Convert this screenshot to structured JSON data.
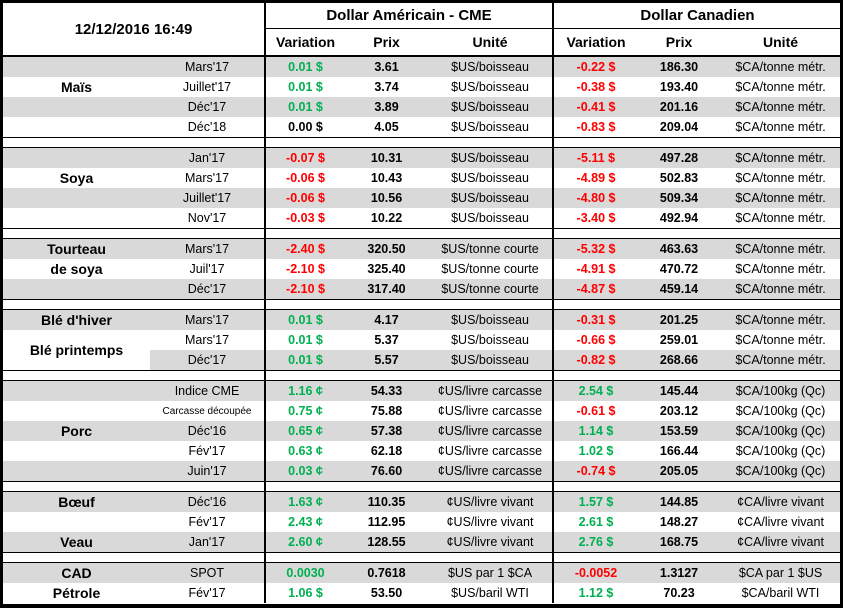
{
  "report": {
    "timestamp": "12/12/2016 16:49",
    "header": {
      "us_group": "Dollar Américain - CME",
      "ca_group": "Dollar Canadien",
      "columns": [
        "Variation",
        "Prix",
        "Unité"
      ]
    },
    "colors": {
      "positive": "#00B050",
      "negative": "#FF0000",
      "neutral": "#000000",
      "row_shade": "#D9D9D9",
      "border": "#000000"
    },
    "sections": [
      {
        "name": "Maïs",
        "rows": [
          {
            "label": "",
            "month": "Mars'17",
            "us": {
              "var": "0.01 $",
              "dir": "up",
              "price": "3.61",
              "unit": "$US/boisseau"
            },
            "ca": {
              "var": "-0.22 $",
              "dir": "down",
              "price": "186.30",
              "unit": "$CA/tonne métr."
            }
          },
          {
            "label": "Maïs",
            "month": "Juillet'17",
            "us": {
              "var": "0.01 $",
              "dir": "up",
              "price": "3.74",
              "unit": "$US/boisseau"
            },
            "ca": {
              "var": "-0.38 $",
              "dir": "down",
              "price": "193.40",
              "unit": "$CA/tonne métr."
            }
          },
          {
            "label": "",
            "month": "Déc'17",
            "us": {
              "var": "0.01 $",
              "dir": "up",
              "price": "3.89",
              "unit": "$US/boisseau"
            },
            "ca": {
              "var": "-0.41 $",
              "dir": "down",
              "price": "201.16",
              "unit": "$CA/tonne métr."
            }
          },
          {
            "label": "",
            "month": "Déc'18",
            "us": {
              "var": "0.00 $",
              "dir": "flat",
              "price": "4.05",
              "unit": "$US/boisseau"
            },
            "ca": {
              "var": "-0.83 $",
              "dir": "down",
              "price": "209.04",
              "unit": "$CA/tonne métr."
            }
          }
        ]
      },
      {
        "name": "Soya",
        "rows": [
          {
            "label": "",
            "month": "Jan'17",
            "us": {
              "var": "-0.07 $",
              "dir": "down",
              "price": "10.31",
              "unit": "$US/boisseau"
            },
            "ca": {
              "var": "-5.11 $",
              "dir": "down",
              "price": "497.28",
              "unit": "$CA/tonne métr."
            }
          },
          {
            "label": "Soya",
            "month": "Mars'17",
            "us": {
              "var": "-0.06 $",
              "dir": "down",
              "price": "10.43",
              "unit": "$US/boisseau"
            },
            "ca": {
              "var": "-4.89 $",
              "dir": "down",
              "price": "502.83",
              "unit": "$CA/tonne métr."
            }
          },
          {
            "label": "",
            "month": "Juillet'17",
            "us": {
              "var": "-0.06 $",
              "dir": "down",
              "price": "10.56",
              "unit": "$US/boisseau"
            },
            "ca": {
              "var": "-4.80 $",
              "dir": "down",
              "price": "509.34",
              "unit": "$CA/tonne métr."
            }
          },
          {
            "label": "",
            "month": "Nov'17",
            "us": {
              "var": "-0.03 $",
              "dir": "down",
              "price": "10.22",
              "unit": "$US/boisseau"
            },
            "ca": {
              "var": "-3.40 $",
              "dir": "down",
              "price": "492.94",
              "unit": "$CA/tonne métr."
            }
          }
        ]
      },
      {
        "name": "Tourteau de soya",
        "rows": [
          {
            "label": "Tourteau",
            "month": "Mars'17",
            "us": {
              "var": "-2.40 $",
              "dir": "down",
              "price": "320.50",
              "unit": "$US/tonne courte"
            },
            "ca": {
              "var": "-5.32 $",
              "dir": "down",
              "price": "463.63",
              "unit": "$CA/tonne métr."
            }
          },
          {
            "label": "de soya",
            "month": "Juil'17",
            "us": {
              "var": "-2.10 $",
              "dir": "down",
              "price": "325.40",
              "unit": "$US/tonne courte"
            },
            "ca": {
              "var": "-4.91 $",
              "dir": "down",
              "price": "470.72",
              "unit": "$CA/tonne métr."
            }
          },
          {
            "label": "",
            "month": "Déc'17",
            "us": {
              "var": "-2.10 $",
              "dir": "down",
              "price": "317.40",
              "unit": "$US/tonne courte"
            },
            "ca": {
              "var": "-4.87 $",
              "dir": "down",
              "price": "459.14",
              "unit": "$CA/tonne métr."
            }
          }
        ]
      },
      {
        "name": "Blé",
        "rows": [
          {
            "label": "Blé d'hiver",
            "month": "Mars'17",
            "us": {
              "var": "0.01 $",
              "dir": "up",
              "price": "4.17",
              "unit": "$US/boisseau"
            },
            "ca": {
              "var": "-0.31 $",
              "dir": "down",
              "price": "201.25",
              "unit": "$CA/tonne métr."
            }
          },
          {
            "label": "Blé printemps",
            "label_rowspan": 2,
            "month": "Mars'17",
            "us": {
              "var": "0.01 $",
              "dir": "up",
              "price": "5.37",
              "unit": "$US/boisseau"
            },
            "ca": {
              "var": "-0.66 $",
              "dir": "down",
              "price": "259.01",
              "unit": "$CA/tonne métr."
            }
          },
          {
            "label_omit": true,
            "month": "Déc'17",
            "us": {
              "var": "0.01 $",
              "dir": "up",
              "price": "5.57",
              "unit": "$US/boisseau"
            },
            "ca": {
              "var": "-0.82 $",
              "dir": "down",
              "price": "268.66",
              "unit": "$CA/tonne métr."
            }
          }
        ]
      },
      {
        "name": "Porc",
        "rows": [
          {
            "label": "",
            "month": "Indice CME",
            "us": {
              "var": "1.16 ¢",
              "dir": "up",
              "price": "54.33",
              "unit": "¢US/livre carcasse"
            },
            "ca": {
              "var": "2.54 $",
              "dir": "up",
              "price": "145.44",
              "unit": "$CA/100kg (Qc)"
            }
          },
          {
            "label": "",
            "month": "Carcasse découpée",
            "month_small": true,
            "us": {
              "var": "0.75 ¢",
              "dir": "up",
              "price": "75.88",
              "unit": "¢US/livre carcasse"
            },
            "ca": {
              "var": "-0.61 $",
              "dir": "down",
              "price": "203.12",
              "unit": "$CA/100kg (Qc)"
            }
          },
          {
            "label": "Porc",
            "month": "Déc'16",
            "us": {
              "var": "0.65 ¢",
              "dir": "up",
              "price": "57.38",
              "unit": "¢US/livre carcasse"
            },
            "ca": {
              "var": "1.14 $",
              "dir": "up",
              "price": "153.59",
              "unit": "$CA/100kg (Qc)"
            }
          },
          {
            "label": "",
            "month": "Fév'17",
            "us": {
              "var": "0.63 ¢",
              "dir": "up",
              "price": "62.18",
              "unit": "¢US/livre carcasse"
            },
            "ca": {
              "var": "1.02 $",
              "dir": "up",
              "price": "166.44",
              "unit": "$CA/100kg (Qc)"
            }
          },
          {
            "label": "",
            "month": "Juin'17",
            "us": {
              "var": "0.03 ¢",
              "dir": "up",
              "price": "76.60",
              "unit": "¢US/livre carcasse"
            },
            "ca": {
              "var": "-0.74 $",
              "dir": "down",
              "price": "205.05",
              "unit": "$CA/100kg (Qc)"
            }
          }
        ]
      },
      {
        "name": "Bœuf / Veau",
        "rows": [
          {
            "label": "Bœuf",
            "month": "Déc'16",
            "us": {
              "var": "1.63 ¢",
              "dir": "up",
              "price": "110.35",
              "unit": "¢US/livre vivant"
            },
            "ca": {
              "var": "1.57 $",
              "dir": "up",
              "price": "144.85",
              "unit": "¢CA/livre vivant"
            }
          },
          {
            "label": "",
            "month": "Fév'17",
            "us": {
              "var": "2.43 ¢",
              "dir": "up",
              "price": "112.95",
              "unit": "¢US/livre vivant"
            },
            "ca": {
              "var": "2.61 $",
              "dir": "up",
              "price": "148.27",
              "unit": "¢CA/livre vivant"
            }
          },
          {
            "label": "Veau",
            "month": "Jan'17",
            "us": {
              "var": "2.60 ¢",
              "dir": "up",
              "price": "128.55",
              "unit": "¢US/livre vivant"
            },
            "ca": {
              "var": "2.76 $",
              "dir": "up",
              "price": "168.75",
              "unit": "¢CA/livre vivant"
            }
          }
        ]
      },
      {
        "name": "CAD / Pétrole",
        "rows": [
          {
            "label": "CAD",
            "month": "SPOT",
            "us": {
              "var": "0.0030",
              "dir": "up",
              "price": "0.7618",
              "unit": "$US par 1 $CA"
            },
            "ca": {
              "var": "-0.0052",
              "dir": "down",
              "price": "1.3127",
              "unit": "$CA par 1 $US"
            }
          },
          {
            "label": "Pétrole",
            "month": "Fév'17",
            "us": {
              "var": "1.06 $",
              "dir": "up",
              "price": "53.50",
              "unit": "$US/baril WTI"
            },
            "ca": {
              "var": "1.12 $",
              "dir": "up",
              "price": "70.23",
              "unit": "$CA/baril WTI"
            }
          }
        ]
      }
    ]
  }
}
